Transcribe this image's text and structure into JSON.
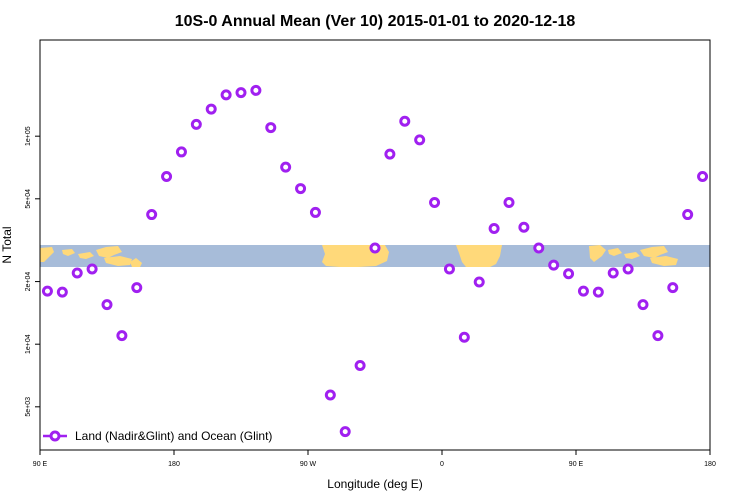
{
  "chart_data": {
    "type": "scatter",
    "title": "10S-0 Annual Mean (Ver 10)   2015-01-01 to 2020-12-18",
    "xlabel": "Longitude (deg E)",
    "ylabel": "N Total",
    "x_scale": "linear",
    "y_scale": "log",
    "xlim": [
      90,
      540
    ],
    "ylim": [
      3100,
      290000
    ],
    "x_ticks": [
      {
        "value": 90,
        "label": "90 E"
      },
      {
        "value": 180,
        "label": "180"
      },
      {
        "value": 270,
        "label": "90 W"
      },
      {
        "value": 360,
        "label": "0"
      },
      {
        "value": 450,
        "label": "90 E"
      },
      {
        "value": 540,
        "label": "180"
      }
    ],
    "y_ticks": [
      {
        "value": 5000,
        "label": "5e+03"
      },
      {
        "value": 10000,
        "label": "1e+04"
      },
      {
        "value": 20000,
        "label": "2e+04"
      },
      {
        "value": 50000,
        "label": "5e+04"
      },
      {
        "value": 100000,
        "label": "1e+05"
      }
    ],
    "grid": false,
    "legend_position": "bottom-left",
    "series": [
      {
        "name": "Land (Nadir&Glint) and Ocean (Glint)",
        "color": "#a020f0",
        "marker": "open-circle",
        "x": [
          95,
          105,
          115,
          125,
          135,
          145,
          155,
          165,
          175,
          185,
          195,
          205,
          215,
          225,
          235,
          245,
          255,
          265,
          275,
          285,
          295,
          305,
          315,
          325,
          335,
          345,
          355,
          365,
          375,
          385,
          395,
          405,
          415,
          425,
          435,
          445,
          455,
          465,
          475,
          485,
          495,
          505,
          515,
          525,
          535
        ],
        "y": [
          18000,
          17800,
          22000,
          23000,
          15500,
          11000,
          18700,
          42000,
          64000,
          84000,
          114000,
          135000,
          158000,
          162000,
          166000,
          110000,
          71000,
          56000,
          43000,
          5700,
          3800,
          7900,
          29000,
          82000,
          118000,
          96000,
          48000,
          23000,
          10800,
          19900,
          36000,
          48000,
          36500,
          29000,
          24000,
          21800,
          18000,
          17800,
          22000,
          23000,
          15500,
          11000,
          18700,
          42000,
          64000
        ]
      }
    ]
  },
  "map_band": {
    "ocean_color": "#a7bcd9",
    "land_color": "#ffd97a"
  }
}
